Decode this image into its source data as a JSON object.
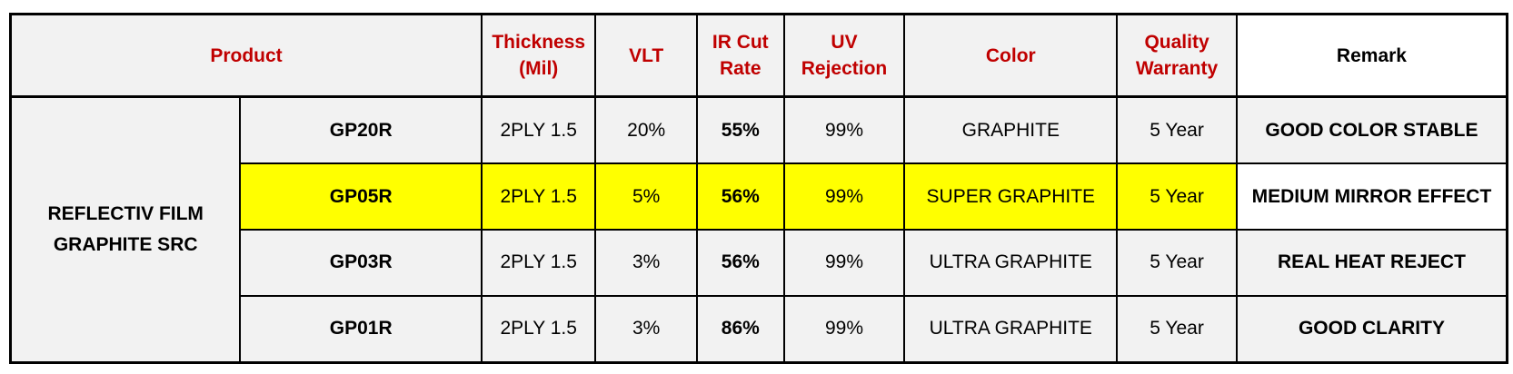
{
  "headers": {
    "product": "Product",
    "thickness": [
      "Thickness",
      "(Mil)"
    ],
    "vlt": "VLT",
    "ir": [
      "IR Cut",
      "Rate"
    ],
    "uv": [
      "UV",
      "Rejection"
    ],
    "color": "Color",
    "warranty": [
      "Quality",
      "Warranty"
    ],
    "remark": "Remark"
  },
  "group_label": [
    "REFLECTIV FILM",
    "GRAPHITE SRC"
  ],
  "rows": [
    {
      "model": "GP20R",
      "thickness": "2PLY 1.5",
      "vlt": "20%",
      "ir": "55%",
      "uv": "99%",
      "color": "GRAPHITE",
      "warranty": "5 Year",
      "remark": "GOOD COLOR STABLE"
    },
    {
      "model": "GP05R",
      "thickness": "2PLY 1.5",
      "vlt": "5%",
      "ir": "56%",
      "uv": "99%",
      "color": "SUPER GRAPHITE",
      "warranty": "5 Year",
      "remark": "MEDIUM MIRROR EFFECT"
    },
    {
      "model": "GP03R",
      "thickness": "2PLY 1.5",
      "vlt": "3%",
      "ir": "56%",
      "uv": "99%",
      "color": "ULTRA GRAPHITE",
      "warranty": "5 Year",
      "remark": "REAL HEAT REJECT"
    },
    {
      "model": "GP01R",
      "thickness": "2PLY 1.5",
      "vlt": "3%",
      "ir": "86%",
      "uv": "99%",
      "color": "ULTRA GRAPHITE",
      "warranty": "5 Year",
      "remark": "GOOD CLARITY"
    }
  ],
  "colors": {
    "header_text": "#c00000",
    "group_text": "#ff0000",
    "ir_text": "#8b3a1f",
    "remark_text": "#c00000",
    "highlight_row": "#ffff00",
    "cell_bg": "#f2f2f2"
  }
}
